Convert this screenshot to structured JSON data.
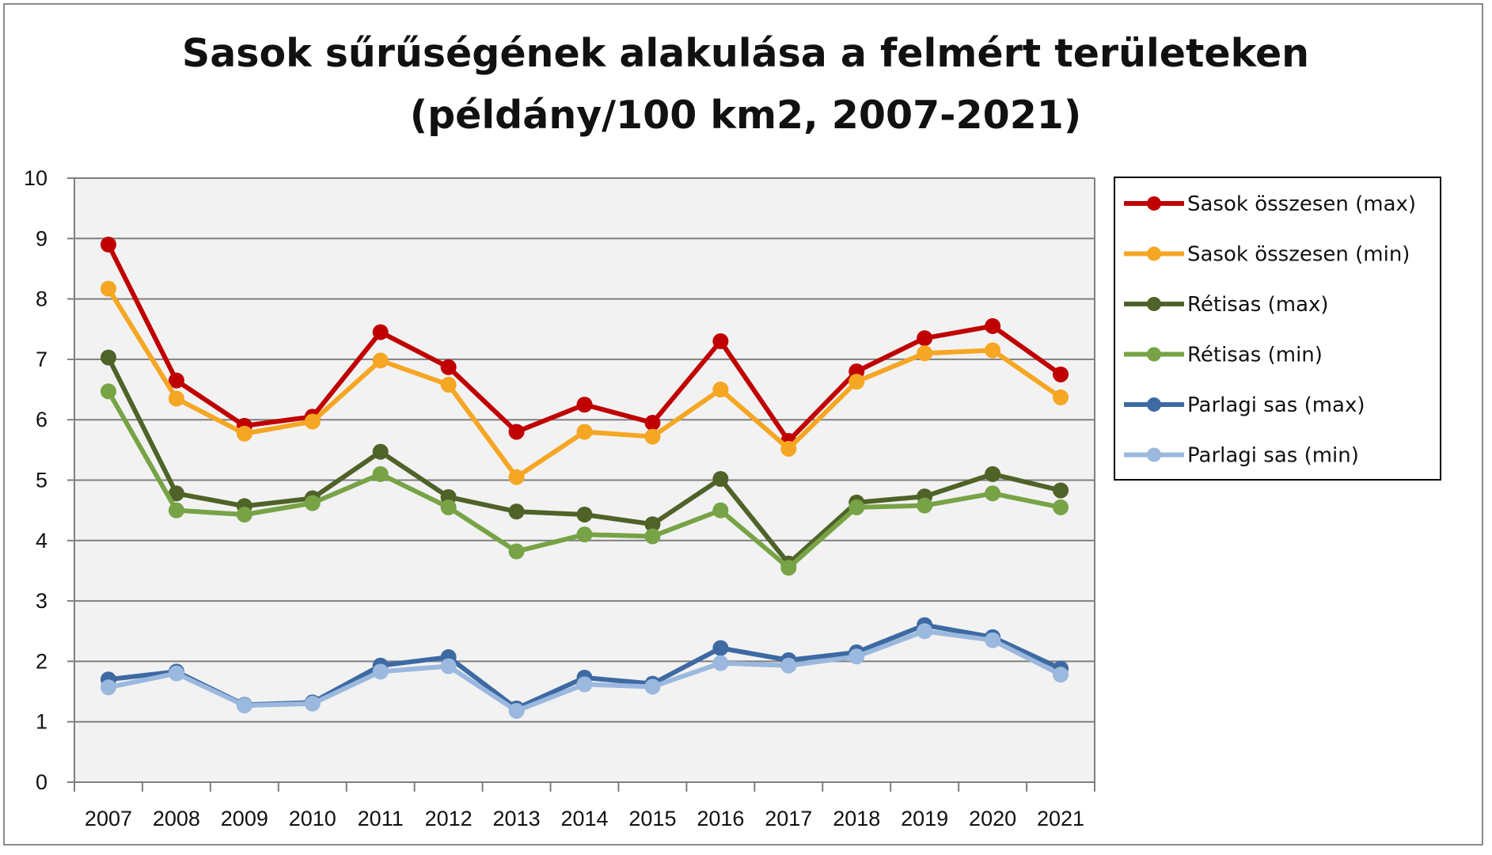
{
  "chart_data": {
    "type": "line",
    "title": "Sasok sűrűségének alakulása a felmért területeken",
    "subtitle": "(példány/100 km2, 2007-2021)",
    "xlabel": "",
    "ylabel": "",
    "categories": [
      "2007",
      "2008",
      "2009",
      "2010",
      "2011",
      "2012",
      "2013",
      "2014",
      "2015",
      "2016",
      "2017",
      "2018",
      "2019",
      "2020",
      "2021"
    ],
    "ylim": [
      0,
      10
    ],
    "yticks": [
      0,
      1,
      2,
      3,
      4,
      5,
      6,
      7,
      8,
      9,
      10
    ],
    "grid": true,
    "legend_position": "right",
    "plot_background": "#f2f2f2",
    "series": [
      {
        "name": "Sasok összesen (max)",
        "color": "#c00000",
        "values": [
          8.9,
          6.65,
          5.9,
          6.05,
          7.45,
          6.87,
          5.8,
          6.25,
          5.95,
          7.3,
          5.65,
          6.8,
          7.35,
          7.55,
          6.75
        ]
      },
      {
        "name": "Sasok összesen (min)",
        "color": "#f5a623",
        "values": [
          8.17,
          6.35,
          5.77,
          5.97,
          6.98,
          6.58,
          5.05,
          5.8,
          5.72,
          6.5,
          5.52,
          6.63,
          7.1,
          7.15,
          6.37
        ]
      },
      {
        "name": "Rétisas (max)",
        "color": "#4f6228",
        "values": [
          7.03,
          4.78,
          4.57,
          4.7,
          5.47,
          4.72,
          4.48,
          4.43,
          4.27,
          5.02,
          3.62,
          4.63,
          4.73,
          5.1,
          4.83
        ]
      },
      {
        "name": "Rétisas (min)",
        "color": "#77a346",
        "values": [
          6.47,
          4.5,
          4.43,
          4.62,
          5.1,
          4.55,
          3.82,
          4.1,
          4.07,
          4.5,
          3.55,
          4.55,
          4.58,
          4.78,
          4.55
        ]
      },
      {
        "name": "Parlagi sas (max)",
        "color": "#3e6aa3",
        "values": [
          1.7,
          1.83,
          1.28,
          1.32,
          1.93,
          2.07,
          1.22,
          1.73,
          1.63,
          2.22,
          2.02,
          2.15,
          2.6,
          2.4,
          1.88
        ]
      },
      {
        "name": "Parlagi sas (min)",
        "color": "#9bb8de",
        "values": [
          1.57,
          1.8,
          1.27,
          1.3,
          1.83,
          1.92,
          1.18,
          1.62,
          1.58,
          1.97,
          1.93,
          2.08,
          2.5,
          2.35,
          1.78
        ]
      }
    ]
  }
}
